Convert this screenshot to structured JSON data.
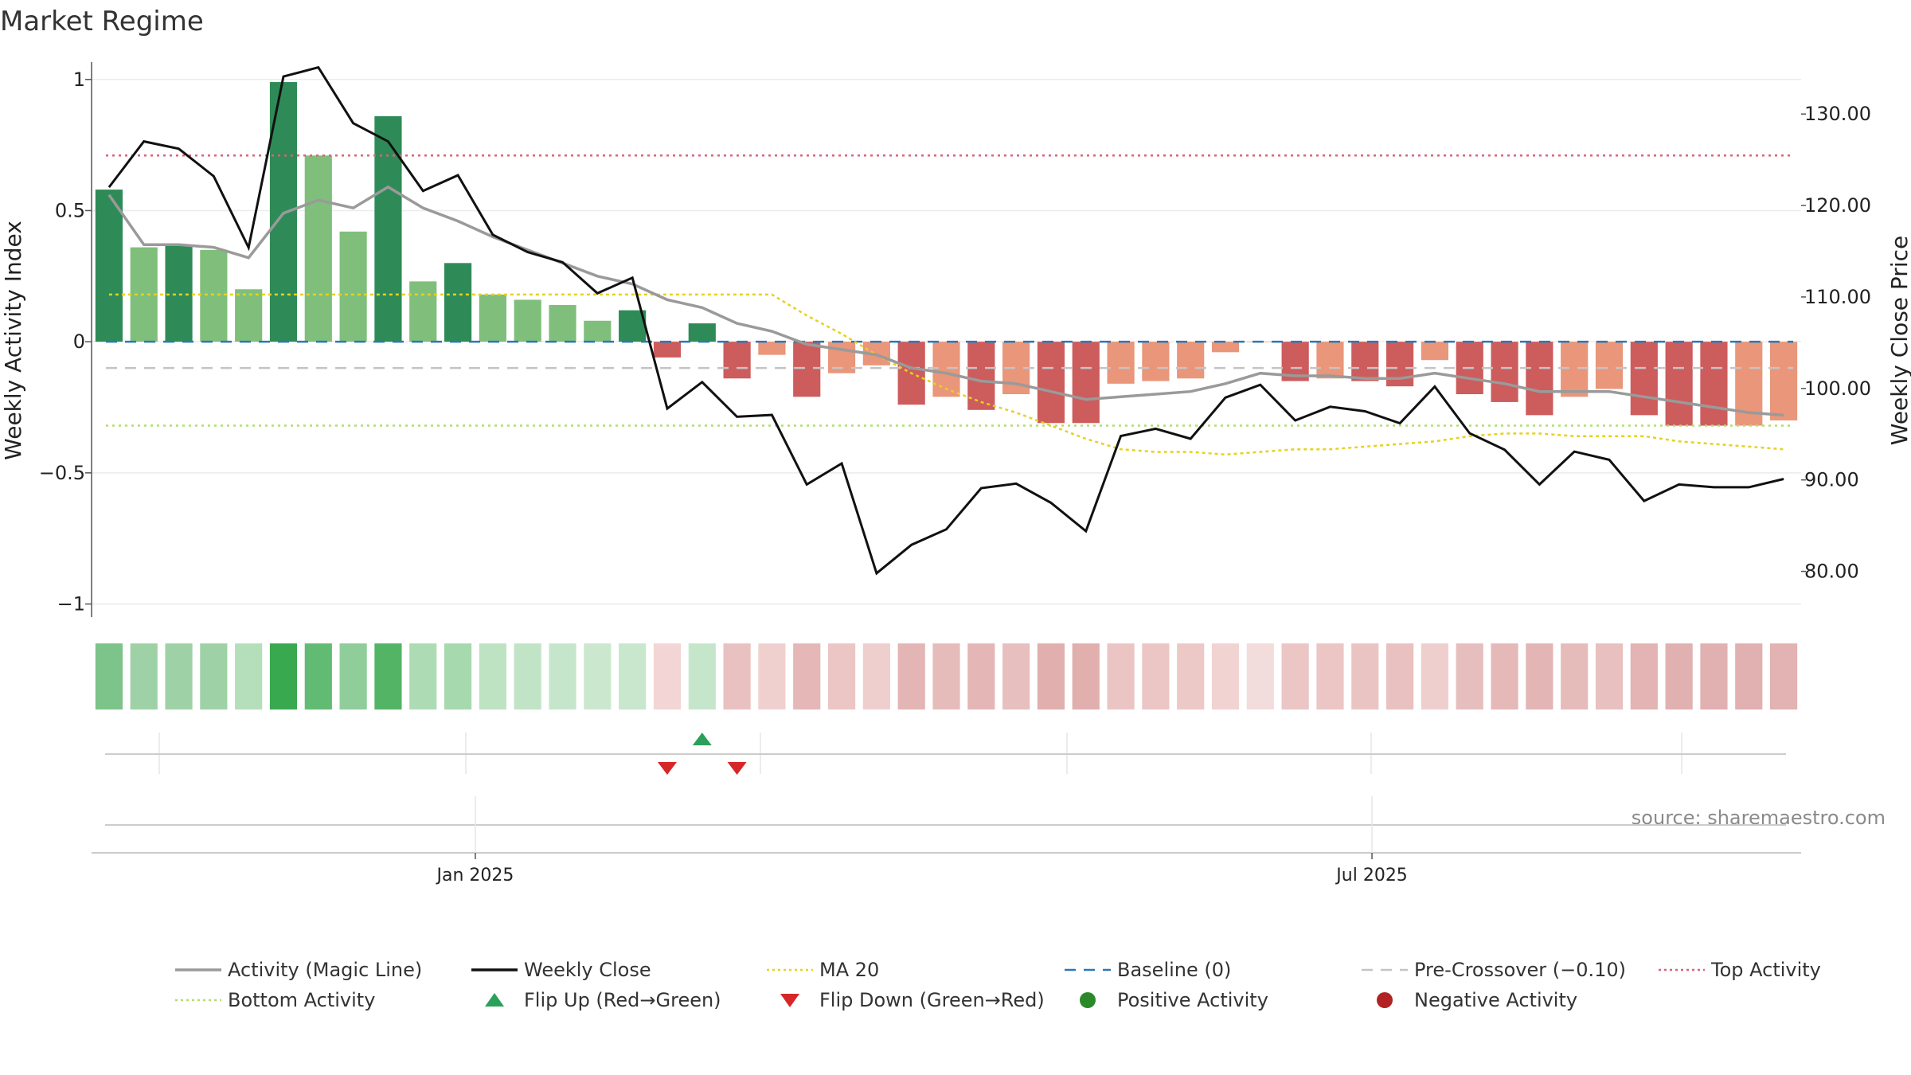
{
  "chart_data": {
    "type": "bar",
    "title": "Market Regime",
    "ylabel_left": "Weekly Activity Index",
    "ylabel_right": "Weekly Close Price",
    "source": "source: sharemaestro.com",
    "ylim_left": [
      -1.05,
      1.06
    ],
    "ylim_right": [
      75.0,
      135.5
    ],
    "left_ticks": [
      {
        "value": 1,
        "label": "1"
      },
      {
        "value": 0.5,
        "label": "0.5"
      },
      {
        "value": 0,
        "label": "0"
      },
      {
        "value": -0.5,
        "label": "−0.5"
      },
      {
        "value": -1,
        "label": "−1"
      }
    ],
    "right_ticks": [
      {
        "value": 130,
        "label": "130.00"
      },
      {
        "value": 120,
        "label": "120.00"
      },
      {
        "value": 110,
        "label": "110.00"
      },
      {
        "value": 100,
        "label": "100.00"
      },
      {
        "value": 90,
        "label": "90.00"
      },
      {
        "value": 80,
        "label": "80.00"
      }
    ],
    "x_ticks": [
      {
        "index": 10.5,
        "label": "Jan 2025"
      },
      {
        "index": 36.2,
        "label": "Jul 2025"
      }
    ],
    "activity": [
      0.58,
      0.36,
      0.37,
      0.35,
      0.2,
      0.99,
      0.71,
      0.42,
      0.86,
      0.23,
      0.3,
      0.18,
      0.16,
      0.14,
      0.08,
      0.12,
      -0.06,
      0.07,
      -0.14,
      -0.05,
      -0.21,
      -0.12,
      -0.09,
      -0.24,
      -0.21,
      -0.26,
      -0.2,
      -0.31,
      -0.31,
      -0.16,
      -0.15,
      -0.14,
      -0.04,
      0.0,
      -0.15,
      -0.14,
      -0.15,
      -0.17,
      -0.07,
      -0.2,
      -0.23,
      -0.28,
      -0.21,
      -0.18,
      -0.28,
      -0.32,
      -0.32,
      -0.32,
      -0.3
    ],
    "regime": [
      "strong-pos",
      "pos",
      "strong-pos",
      "pos",
      "pos",
      "strong-pos",
      "pos",
      "pos",
      "strong-pos",
      "pos",
      "strong-pos",
      "pos",
      "pos",
      "pos",
      "pos",
      "strong-pos",
      "strong-neg",
      "strong-pos",
      "strong-neg",
      "neg",
      "strong-neg",
      "neg",
      "neg",
      "strong-neg",
      "neg",
      "strong-neg",
      "neg",
      "strong-neg",
      "strong-neg",
      "neg",
      "neg",
      "neg",
      "neg",
      "neg",
      "strong-neg",
      "neg",
      "strong-neg",
      "strong-neg",
      "neg",
      "strong-neg",
      "strong-neg",
      "strong-neg",
      "neg",
      "neg",
      "strong-neg",
      "strong-neg",
      "strong-neg",
      "neg",
      "neg"
    ],
    "magic_line": [
      0.56,
      0.37,
      0.37,
      0.36,
      0.32,
      0.49,
      0.54,
      0.51,
      0.59,
      0.51,
      0.46,
      0.4,
      0.35,
      0.3,
      0.25,
      0.22,
      0.16,
      0.13,
      0.07,
      0.04,
      -0.01,
      -0.03,
      -0.05,
      -0.1,
      -0.12,
      -0.15,
      -0.16,
      -0.19,
      -0.22,
      -0.21,
      -0.2,
      -0.19,
      -0.16,
      -0.12,
      -0.13,
      -0.13,
      -0.14,
      -0.14,
      -0.12,
      -0.14,
      -0.16,
      -0.19,
      -0.19,
      -0.19,
      -0.21,
      -0.23,
      -0.25,
      -0.27,
      -0.28
    ],
    "ma20": [
      0.18,
      0.18,
      0.18,
      0.18,
      0.18,
      0.18,
      0.18,
      0.18,
      0.18,
      0.18,
      0.18,
      0.18,
      0.18,
      0.18,
      0.18,
      0.18,
      0.18,
      0.18,
      0.18,
      0.18,
      0.1,
      0.03,
      -0.05,
      -0.12,
      -0.18,
      -0.23,
      -0.27,
      -0.32,
      -0.37,
      -0.41,
      -0.42,
      -0.42,
      -0.43,
      -0.42,
      -0.41,
      -0.41,
      -0.4,
      -0.39,
      -0.38,
      -0.36,
      -0.35,
      -0.35,
      -0.36,
      -0.36,
      -0.36,
      -0.38,
      -0.39,
      -0.4,
      -0.41
    ],
    "weekly_close": [
      122.0,
      127.0,
      126.2,
      123.2,
      115.4,
      134.1,
      135.1,
      129.0,
      127.0,
      121.6,
      123.3,
      116.8,
      114.9,
      113.8,
      110.4,
      112.1,
      97.8,
      100.7,
      96.9,
      97.1,
      89.5,
      91.8,
      79.8,
      82.9,
      84.6,
      89.1,
      89.6,
      87.5,
      84.4,
      94.8,
      95.6,
      94.5,
      99.0,
      100.4,
      96.5,
      98.0,
      97.5,
      96.2,
      100.2,
      95.1,
      93.3,
      89.5,
      93.1,
      92.2,
      87.7,
      89.5,
      89.2,
      89.2,
      90.1
    ],
    "reference_lines": {
      "baseline": 0,
      "pre_crossover": -0.1,
      "top_activity": 0.71,
      "bottom_activity": -0.32
    },
    "strip_colors": [
      "#7cc489",
      "#9ed2a6",
      "#9ed2a6",
      "#9ed2a6",
      "#b5dfbb",
      "#38a94f",
      "#62bb73",
      "#8fcd9a",
      "#52b464",
      "#addcb4",
      "#a7d9ae",
      "#bde3c3",
      "#c1e4c6",
      "#c6e6cb",
      "#cbe8cf",
      "#c8e7cc",
      "#f2d5d4",
      "#c6e6cb",
      "#e9c1c1",
      "#f0d0cf",
      "#e5b7b7",
      "#ebc6c5",
      "#efcfce",
      "#e3b5b4",
      "#e6bcbb",
      "#e4b7b6",
      "#e7bfbe",
      "#e0afae",
      "#e0afae",
      "#ebc5c4",
      "#ebc6c5",
      "#ecc8c7",
      "#f1d3d2",
      "#f3dcdc",
      "#ebc6c5",
      "#ebc6c5",
      "#eac4c3",
      "#e9c1c0",
      "#efcfce",
      "#e7bebe",
      "#e5b9b8",
      "#e3b5b4",
      "#e6bcbb",
      "#e8c0bf",
      "#e3b4b3",
      "#e1b0b0",
      "#e1b0b0",
      "#e1b0b0",
      "#e2b3b2"
    ],
    "flip_up": [
      17
    ],
    "flip_down": [
      16,
      18
    ],
    "legend": [
      {
        "label": "Activity (Magic Line)",
        "symbol": "line",
        "color": "#9a9a9a"
      },
      {
        "label": "Weekly Close",
        "symbol": "line",
        "color": "#111111"
      },
      {
        "label": "MA 20",
        "symbol": "dotted",
        "color": "#e6d21e"
      },
      {
        "label": "Baseline (0)",
        "symbol": "dashed",
        "color": "#2a78b8"
      },
      {
        "label": "Pre-Crossover (−0.10)",
        "symbol": "dashed",
        "color": "#c4c4c4"
      },
      {
        "label": "Top Activity",
        "symbol": "dotted",
        "color": "#d9627a"
      },
      {
        "label": "Bottom Activity",
        "symbol": "dotted",
        "color": "#b2dd6e"
      },
      {
        "label": "Flip Up (Red→Green)",
        "symbol": "triangle-up",
        "color": "#2ca05a"
      },
      {
        "label": "Flip Down (Green→Red)",
        "symbol": "triangle-down",
        "color": "#d62728"
      },
      {
        "label": "Positive Activity",
        "symbol": "circle",
        "color": "#2a8a2a"
      },
      {
        "label": "Negative Activity",
        "symbol": "circle",
        "color": "#b22222"
      }
    ],
    "colors": {
      "strong_pos": "#2e8b57",
      "pos": "#7fbf7b",
      "strong_neg": "#cd5c5c",
      "neg": "#e9967a",
      "magic_line": "#9a9a9a",
      "close": "#111111",
      "ma20": "#e6d21e",
      "baseline": "#2a78b8",
      "pre_crossover": "#c4c4c4",
      "top": "#d9627a",
      "bottom": "#b2dd6e",
      "flip_up": "#2ca05a",
      "flip_down": "#d62728"
    }
  }
}
